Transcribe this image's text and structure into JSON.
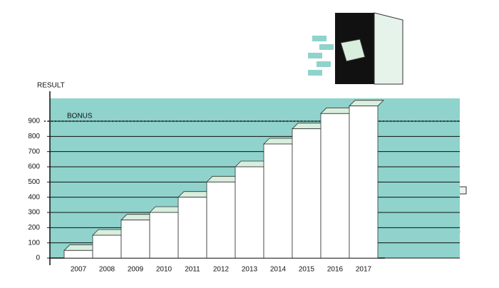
{
  "chart_data": {
    "type": "bar",
    "y_label": "RESULT",
    "categories": [
      "2007",
      "2008",
      "2009",
      "2010",
      "2011",
      "2012",
      "2013",
      "2014",
      "2015",
      "2016",
      "2017"
    ],
    "values": [
      50,
      150,
      250,
      300,
      400,
      500,
      600,
      750,
      850,
      950,
      1000
    ],
    "color": "#ffffff",
    "background": "#8fd3cc",
    "step_top_color": "#d9eedd",
    "ylim": [
      0,
      1050
    ],
    "yticks": [
      0,
      100,
      200,
      300,
      400,
      500,
      600,
      700,
      800,
      900
    ],
    "grid": true,
    "bonus": {
      "label": "BONUS",
      "value": 900
    }
  }
}
